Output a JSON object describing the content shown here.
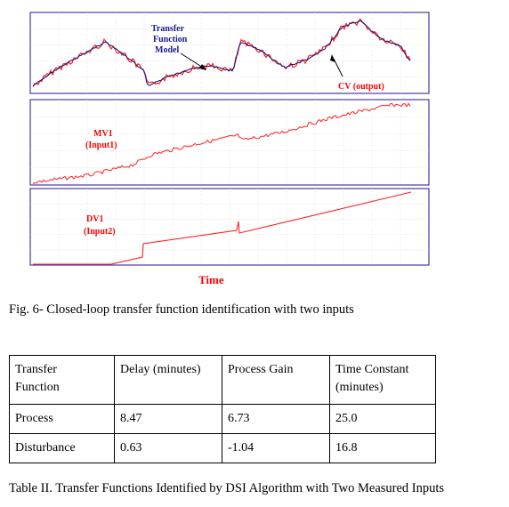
{
  "figure": {
    "panels": [
      {
        "name": "cv",
        "labels": [
          "CV (output)"
        ],
        "label_color": "#ff0000"
      },
      {
        "name": "mv1",
        "labels": [
          "MV1",
          "(Input1)"
        ],
        "label_color": "#ff0000"
      },
      {
        "name": "dv1",
        "labels": [
          "DV1",
          "(Input2)"
        ],
        "label_color": "#ff0000"
      }
    ],
    "model_label": [
      "Transfer",
      "Function",
      "Model"
    ],
    "model_label_color": "#1a1a8c",
    "x_label": "Time",
    "colors": {
      "frame": "#4a3a9e",
      "signal": "#ff2020",
      "model": "#1a1a7a",
      "grid": "#bbbbbb"
    }
  },
  "caption": "Fig. 6- Closed-loop transfer function identification with two inputs",
  "table": {
    "headers": [
      "Transfer\nFunction",
      "Delay (minutes)",
      "Process Gain",
      "Time Constant\n(minutes)"
    ],
    "rows": [
      [
        "Process",
        "8.47",
        "6.73",
        "25.0"
      ],
      [
        "Disturbance",
        "0.63",
        "-1.04",
        "16.8"
      ]
    ]
  },
  "table_caption": "Table II.  Transfer Functions Identified by DSI Algorithm with Two Measured Inputs"
}
